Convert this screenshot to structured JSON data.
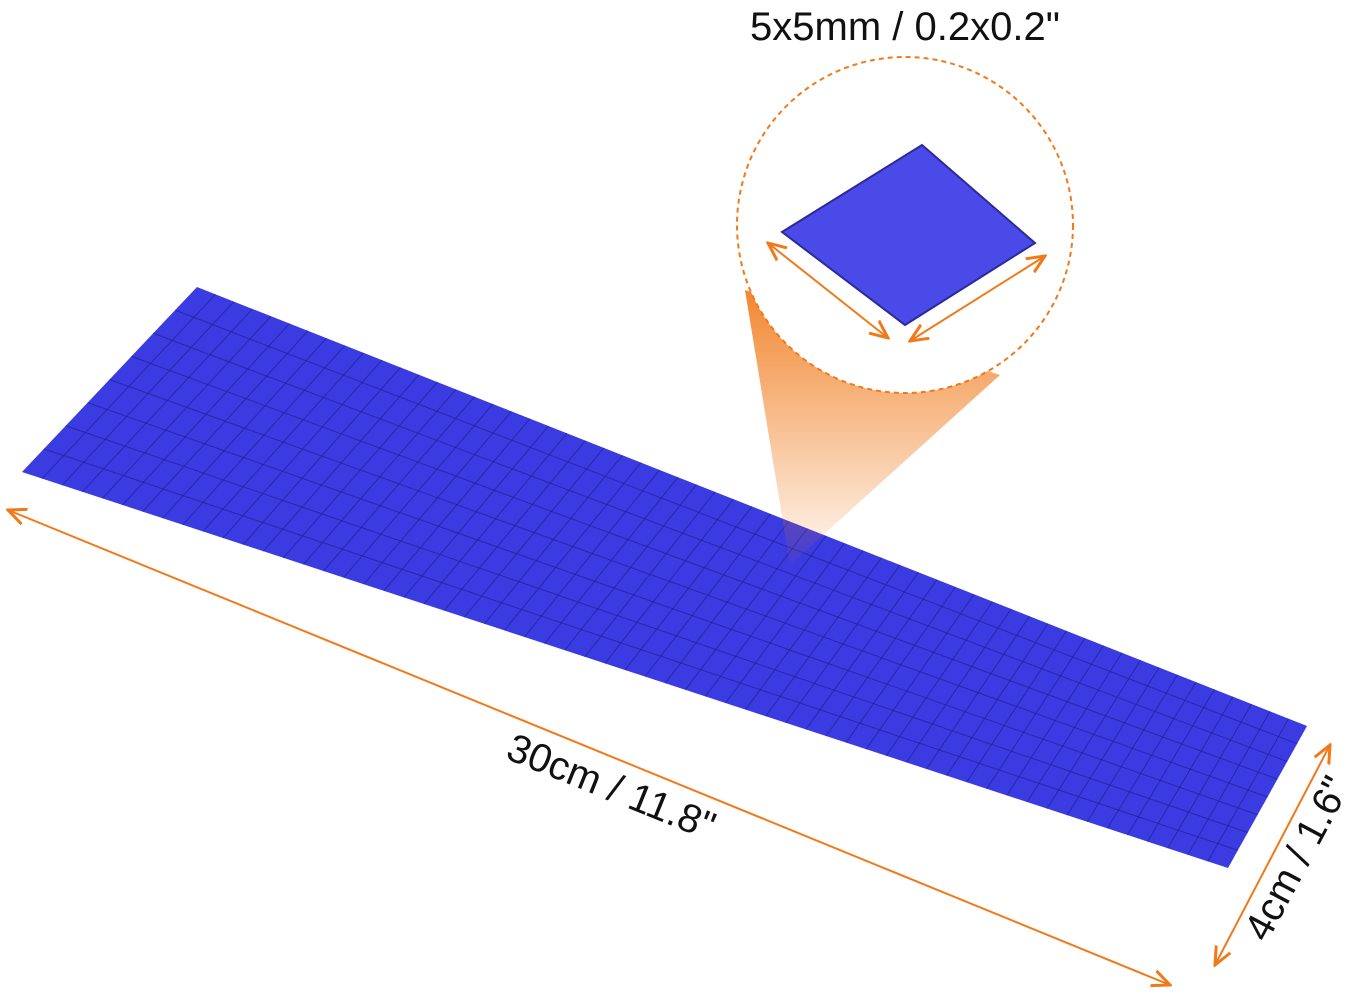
{
  "labels": {
    "tile_size": "5x5mm / 0.2x0.2\"",
    "length": "30cm / 11.8\"",
    "width": "4cm / 1.6\""
  },
  "colors": {
    "pad": "#3a3be0",
    "pad_line": "#1b1c8a",
    "annotation": "#f07a1a",
    "text": "#111111"
  },
  "grid": {
    "rows": 8,
    "columns": 60
  }
}
